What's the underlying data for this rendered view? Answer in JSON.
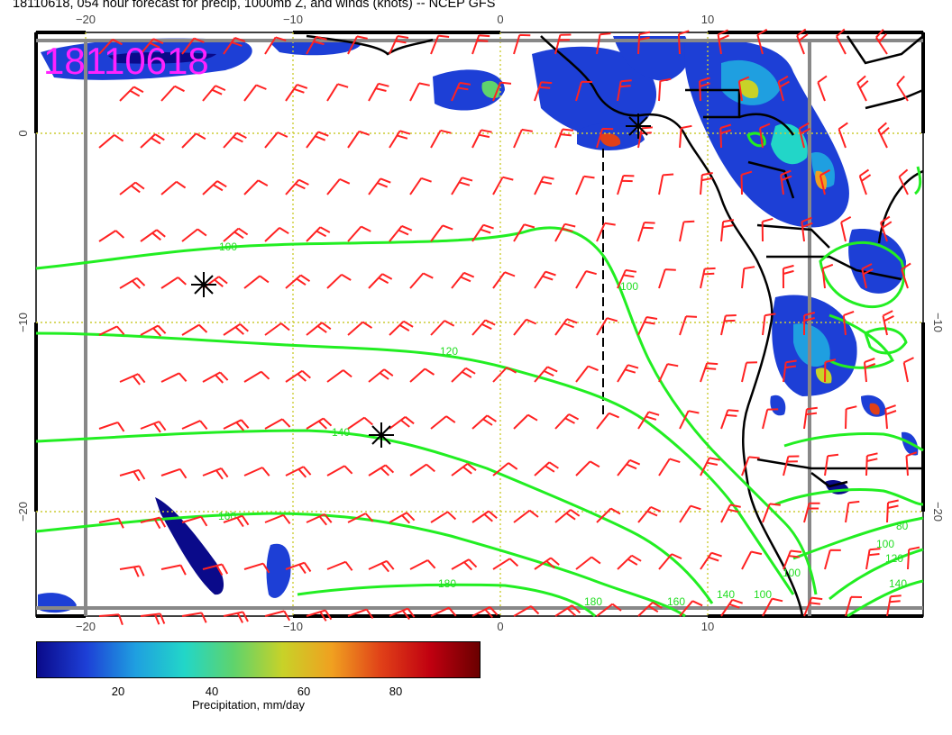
{
  "title": "18110618, 054 hour forecast for precip, 1000mb Z, and winds (knots) -- NCEP GFS",
  "stamp": "18110618",
  "axes": {
    "top_ticks": [
      "−20",
      "−10",
      "0",
      "10"
    ],
    "bottom_ticks": [
      "−20",
      "−10",
      "0",
      "10"
    ],
    "left_ticks": [
      "0",
      "−10",
      "−20"
    ],
    "right_ticks": [
      "−10",
      "−20"
    ]
  },
  "contours": [
    {
      "label": "100"
    },
    {
      "label": "120"
    },
    {
      "label": "140"
    },
    {
      "label": "160"
    },
    {
      "label": "180"
    },
    {
      "label": "180"
    },
    {
      "label": "160"
    },
    {
      "label": "140"
    },
    {
      "label": "100"
    },
    {
      "label": "100"
    },
    {
      "label": "80"
    },
    {
      "label": "100"
    },
    {
      "label": "120"
    },
    {
      "label": "140"
    },
    {
      "label": "100"
    }
  ],
  "colorbar": {
    "ticks": [
      "20",
      "40",
      "60",
      "80"
    ],
    "label": "Precipitation, mm/day",
    "colors": [
      "#0a0a8a",
      "#1d3fd6",
      "#1f9fe0",
      "#22d6c8",
      "#5fd36c",
      "#c8d228",
      "#f0a020",
      "#e04018",
      "#c00010",
      "#6a0000"
    ]
  },
  "colors": {
    "barb": "#ff2222",
    "contour": "#22ee22",
    "grid": "#cccc33",
    "frame": "#888888",
    "stamp": "#ff22ff"
  }
}
